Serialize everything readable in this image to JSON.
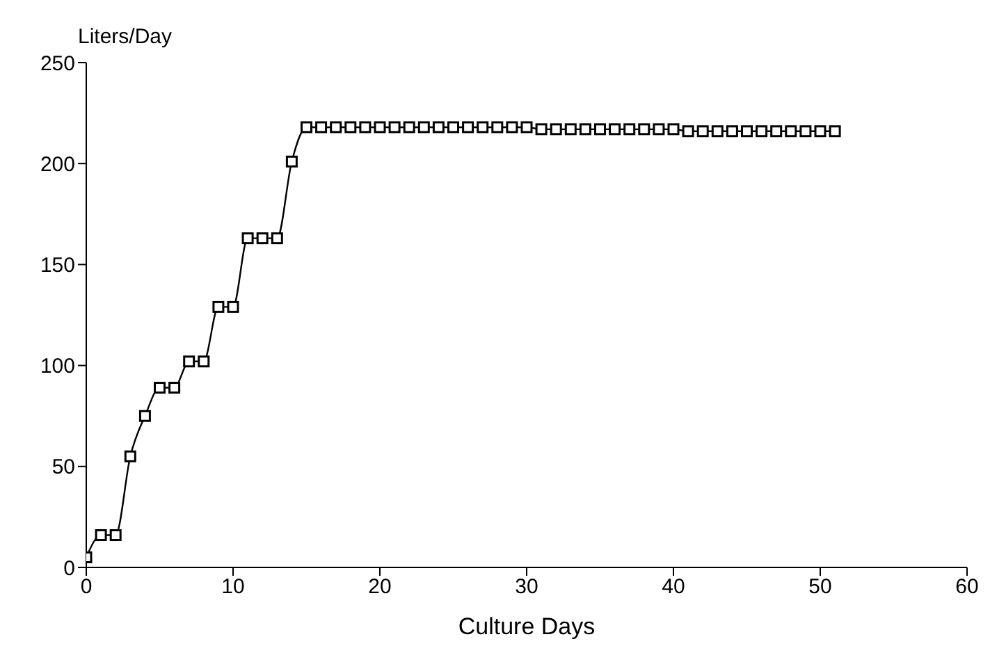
{
  "chart_data": {
    "type": "line",
    "xlabel": "Culture Days",
    "ylabel": "Liters/Day",
    "series": [
      {
        "color": "#000000",
        "x": [
          0,
          1,
          2,
          3,
          4,
          5,
          6,
          7,
          8,
          9,
          10,
          11,
          12,
          13,
          14,
          15,
          16,
          17,
          18,
          19,
          20,
          21,
          22,
          23,
          24,
          25,
          26,
          27,
          28,
          29,
          30,
          31,
          32,
          33,
          34,
          35,
          36,
          37,
          38,
          39,
          40,
          41,
          42,
          43,
          44,
          45,
          46,
          47,
          48,
          49,
          50,
          51
        ],
        "values": [
          5,
          16,
          16,
          55,
          75,
          89,
          89,
          102,
          102,
          129,
          129,
          163,
          163,
          163,
          201,
          218,
          218,
          218,
          218,
          218,
          218,
          218,
          218,
          218,
          218,
          218,
          218,
          218,
          218,
          218,
          218,
          217,
          217,
          217,
          217,
          217,
          217,
          217,
          217,
          217,
          217,
          216,
          216,
          216,
          216,
          216,
          216,
          216,
          216,
          216,
          216,
          216
        ]
      }
    ],
    "xlim": [
      0,
      60
    ],
    "xticks": [
      0,
      10,
      20,
      30,
      40,
      50,
      60
    ],
    "ylim": [
      0,
      250
    ],
    "yticks": [
      0,
      50,
      100,
      150,
      200,
      250
    ],
    "marker": "square",
    "line_style": "solid",
    "grid": false,
    "legend": false
  }
}
